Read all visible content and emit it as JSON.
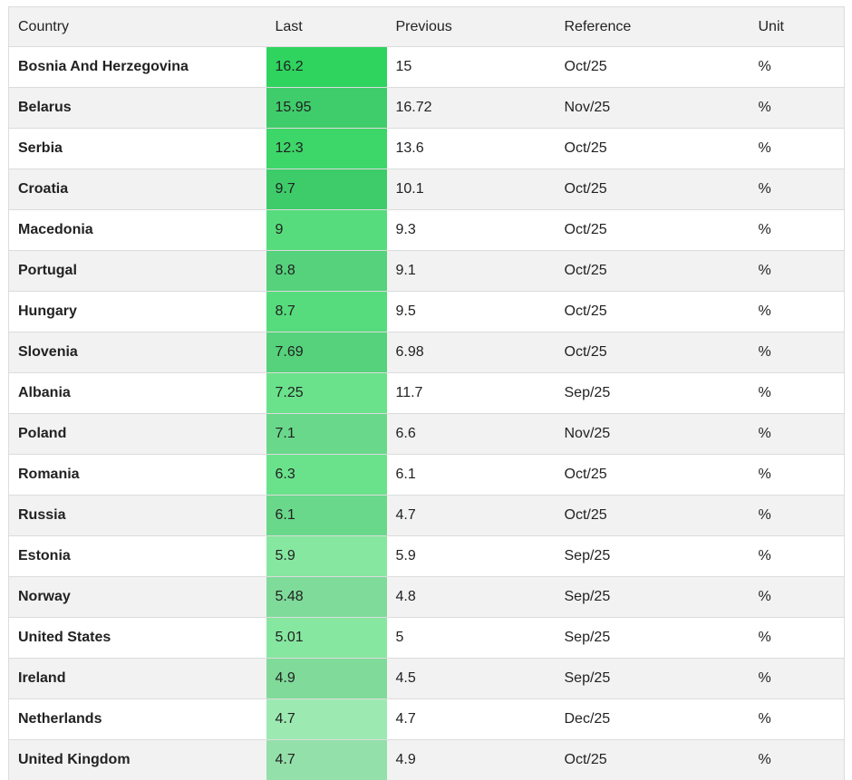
{
  "table": {
    "header": [
      "Country",
      "Last",
      "Previous",
      "Reference",
      "Unit"
    ],
    "rows": [
      [
        "Bosnia And Herzegovina",
        "16.2",
        "15",
        "Oct/25",
        "%"
      ],
      [
        "Belarus",
        "15.95",
        "16.72",
        "Nov/25",
        "%"
      ],
      [
        "Serbia",
        "12.3",
        "13.6",
        "Oct/25",
        "%"
      ],
      [
        "Croatia",
        "9.7",
        "10.1",
        "Oct/25",
        "%"
      ],
      [
        "Macedonia",
        "9",
        "9.3",
        "Oct/25",
        "%"
      ],
      [
        "Portugal",
        "8.8",
        "9.1",
        "Oct/25",
        "%"
      ],
      [
        "Hungary",
        "8.7",
        "9.5",
        "Oct/25",
        "%"
      ],
      [
        "Slovenia",
        "7.69",
        "6.98",
        "Oct/25",
        "%"
      ],
      [
        "Albania",
        "7.25",
        "11.7",
        "Sep/25",
        "%"
      ],
      [
        "Poland",
        "7.1",
        "6.6",
        "Nov/25",
        "%"
      ],
      [
        "Romania",
        "6.3",
        "6.1",
        "Oct/25",
        "%"
      ],
      [
        "Russia",
        "6.1",
        "4.7",
        "Oct/25",
        "%"
      ],
      [
        "Estonia",
        "5.9",
        "5.9",
        "Sep/25",
        "%"
      ],
      [
        "Norway",
        "5.48",
        "4.8",
        "Sep/25",
        "%"
      ],
      [
        "United States",
        "5.01",
        "5",
        "Sep/25",
        "%"
      ],
      [
        "Ireland",
        "4.9",
        "4.5",
        "Sep/25",
        "%"
      ],
      [
        "Netherlands",
        "4.7",
        "4.7",
        "Dec/25",
        "%"
      ],
      [
        "United Kingdom",
        "4.7",
        "4.9",
        "Oct/25",
        "%"
      ]
    ],
    "last_colors": [
      "#2ed45e",
      "#3fcc6a",
      "#3dd668",
      "#3dcc69",
      "#56dc7c",
      "#55d27b",
      "#56dc7c",
      "#55d27b",
      "#6ae28b",
      "#69d88a",
      "#6ae28b",
      "#69d88a",
      "#86e7a0",
      "#7fdb99",
      "#86e7a0",
      "#80da9a",
      "#9ceab1",
      "#94e0aa"
    ]
  }
}
